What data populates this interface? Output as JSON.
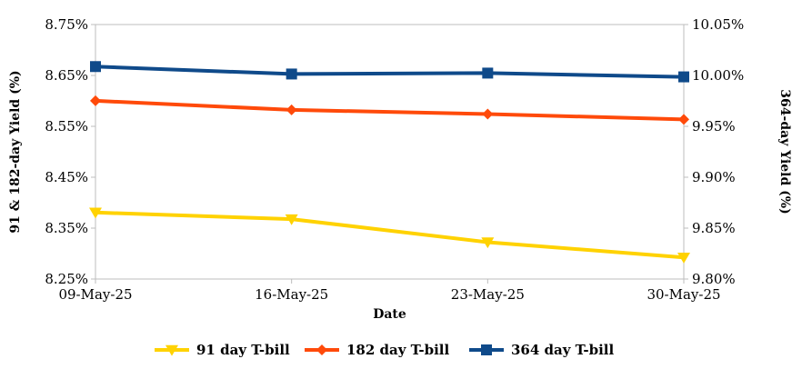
{
  "chart_data": {
    "type": "line",
    "x": [
      "09-May-25",
      "16-May-25",
      "23-May-25",
      "30-May-25"
    ],
    "xlabel": "Date",
    "ylabel_left": "91 & 182-day Yield (%)",
    "ylabel_right": "364-day Yield (%)",
    "ylim_left": [
      8.25,
      8.75
    ],
    "ylim_right": [
      9.8,
      10.05
    ],
    "yticks_left": [
      "8.25%",
      "8.35%",
      "8.45%",
      "8.55%",
      "8.65%",
      "8.75%"
    ],
    "yticks_right": [
      "9.80%",
      "9.85%",
      "9.90%",
      "9.95%",
      "10.00%",
      "10.05%"
    ],
    "grid": false,
    "legend_position": "bottom",
    "series": [
      {
        "name": "91 day T-bill",
        "axis": "left",
        "color": "#FFD200",
        "marker": "triangle-down",
        "values": [
          8.3807,
          8.3677,
          8.3223,
          8.2924
        ]
      },
      {
        "name": "182 day T-bill",
        "axis": "left",
        "color": "#FF4A0A",
        "marker": "diamond",
        "values": [
          8.6002,
          8.5823,
          8.5742,
          8.5636
        ]
      },
      {
        "name": "364 day T-bill",
        "axis": "right",
        "color": "#0F4A8A",
        "marker": "square",
        "values": [
          10.0087,
          10.0014,
          10.0023,
          9.9986
        ]
      }
    ]
  }
}
